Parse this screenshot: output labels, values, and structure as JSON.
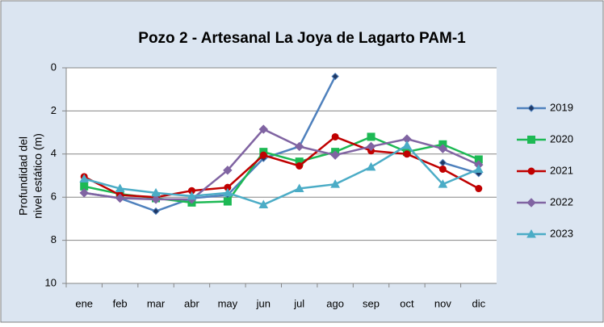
{
  "chart_data": {
    "type": "line",
    "title": "Pozo 2 - Artesanal La Joya de Lagarto PAM-1",
    "ylabel": [
      "Profundidad del",
      "nivel estático (m)"
    ],
    "categories": [
      "ene",
      "feb",
      "mar",
      "abr",
      "may",
      "jun",
      "jul",
      "ago",
      "sep",
      "oct",
      "nov",
      "dic"
    ],
    "ylim": [
      0,
      10
    ],
    "yticks": [
      0,
      2,
      4,
      6,
      8,
      10
    ],
    "y_inverted": true,
    "grid": true,
    "legend": "right",
    "series": [
      {
        "name": "2019",
        "color": "#4f81bd",
        "marker": "diamond-small",
        "values": [
          5.8,
          6.05,
          6.65,
          6.05,
          5.9,
          4.2,
          3.65,
          0.4,
          null,
          null,
          4.4,
          4.9
        ]
      },
      {
        "name": "2020",
        "color": "#1db954",
        "marker": "square",
        "values": [
          5.5,
          5.85,
          6.05,
          6.25,
          6.2,
          3.9,
          4.35,
          3.9,
          3.2,
          3.9,
          3.55,
          4.25
        ]
      },
      {
        "name": "2021",
        "color": "#c00000",
        "marker": "circle",
        "values": [
          5.05,
          5.9,
          6.0,
          5.7,
          5.55,
          4.05,
          4.55,
          3.2,
          3.85,
          4.0,
          4.7,
          5.6
        ]
      },
      {
        "name": "2022",
        "color": "#8064a2",
        "marker": "diamond",
        "values": [
          5.8,
          6.05,
          6.1,
          6.1,
          4.75,
          2.85,
          3.65,
          4.05,
          3.65,
          3.3,
          3.75,
          4.5
        ]
      },
      {
        "name": "2023",
        "color": "#4bacc6",
        "marker": "triangle",
        "values": [
          5.15,
          5.6,
          5.8,
          5.95,
          5.8,
          6.35,
          5.6,
          5.4,
          4.6,
          3.6,
          5.4,
          4.7
        ]
      }
    ]
  }
}
